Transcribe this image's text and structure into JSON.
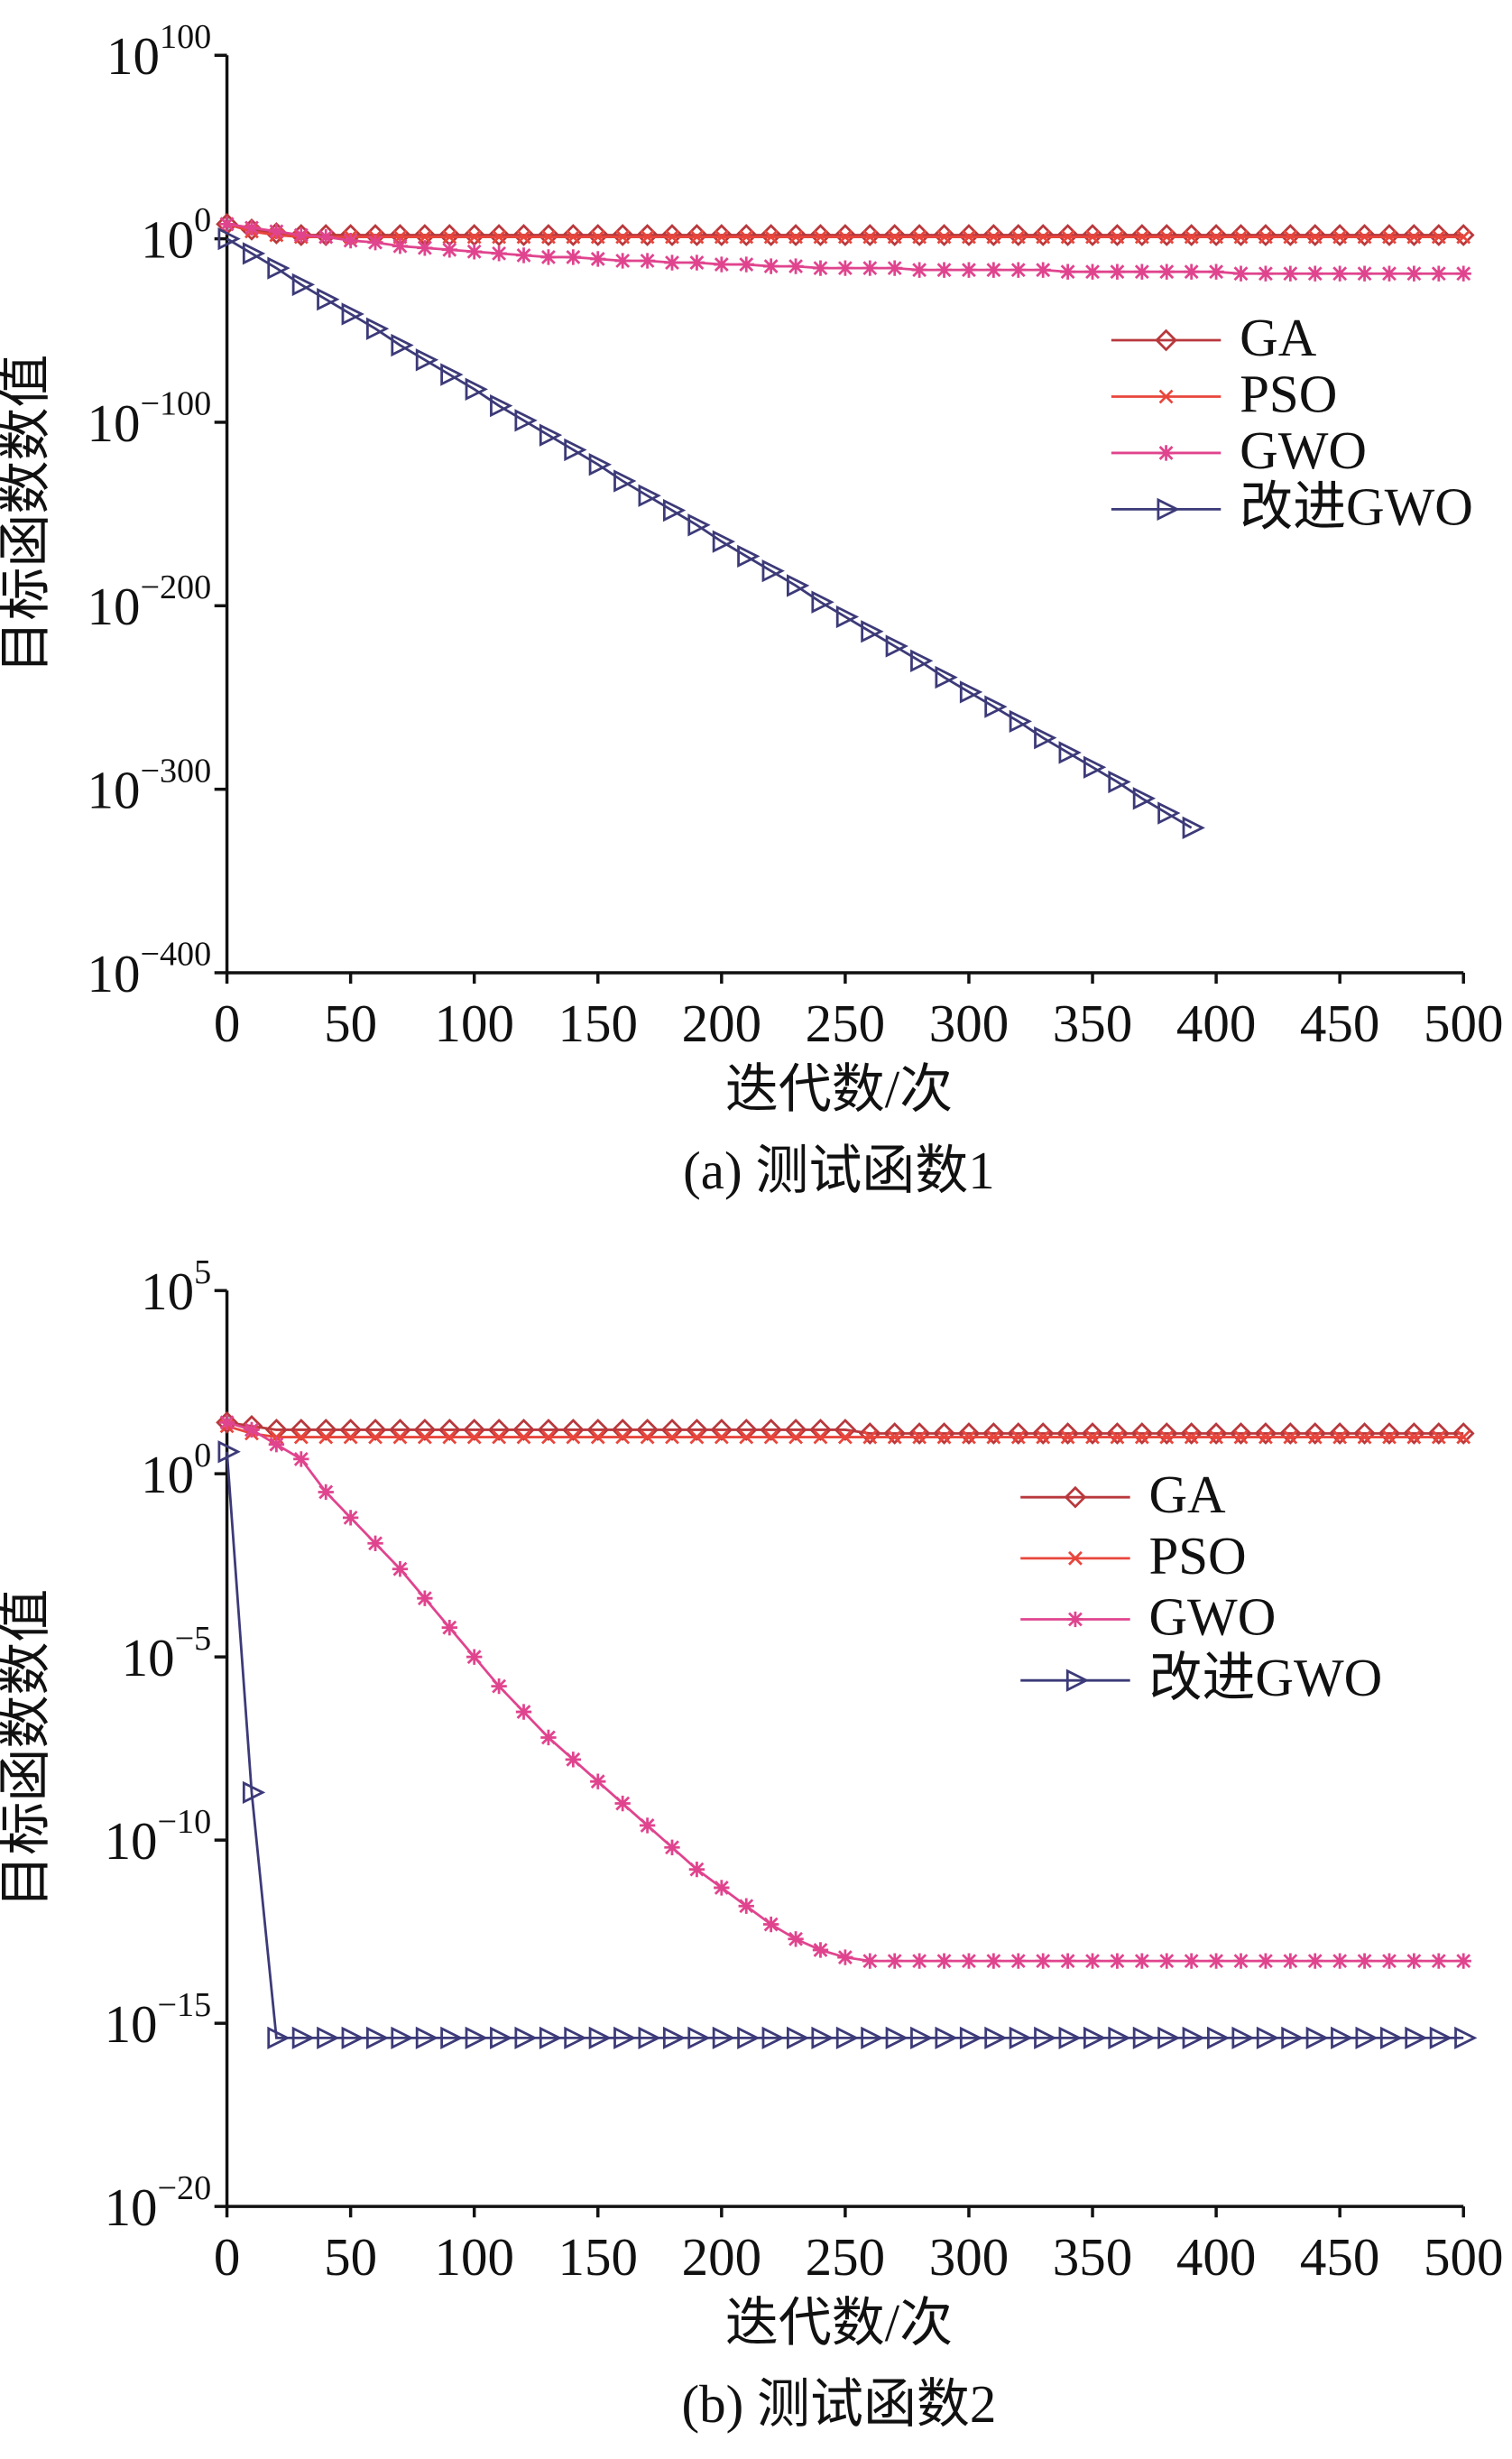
{
  "chart_data": [
    {
      "type": "line",
      "caption": "(a) 测试函数1",
      "x_label": "迭代数/次",
      "y_label": "目标函数数值",
      "log_scale": true,
      "legend": "upper right",
      "x": [
        0,
        10,
        20,
        30,
        40,
        50,
        60,
        70,
        80,
        90,
        100,
        110,
        120,
        130,
        140,
        150,
        160,
        170,
        180,
        190,
        200,
        210,
        220,
        230,
        240,
        250,
        260,
        270,
        280,
        290,
        300,
        310,
        320,
        330,
        340,
        350,
        360,
        370,
        380,
        390,
        400,
        410,
        420,
        430,
        440,
        450,
        460,
        470,
        480,
        490,
        500
      ],
      "xlim": [
        0,
        500
      ],
      "xticks": [
        0,
        50,
        100,
        150,
        200,
        250,
        300,
        350,
        400,
        450,
        500
      ],
      "ylim": [
        -400,
        100
      ],
      "yticks": [
        {
          "value": -400,
          "label": "10^−400"
        },
        {
          "value": -300,
          "label": "10^−300"
        },
        {
          "value": -200,
          "label": "10^−200"
        },
        {
          "value": -100,
          "label": "10^−100"
        },
        {
          "value": 0,
          "label": "10^0"
        },
        {
          "value": 100,
          "label": "10^100"
        }
      ],
      "series": [
        {
          "name": "GA",
          "color": "#b8383c",
          "marker": "diamond",
          "values": [
            8,
            5,
            3,
            2,
            2,
            2,
            2,
            2,
            2,
            2,
            2,
            2,
            2,
            2,
            2,
            2,
            2,
            2,
            2,
            2,
            2,
            2,
            2,
            2,
            2,
            2,
            2,
            2,
            2,
            2,
            2,
            2,
            2,
            2,
            2,
            2,
            2,
            2,
            2,
            2,
            2,
            2,
            2,
            2,
            2,
            2,
            2,
            2,
            2,
            2,
            2
          ]
        },
        {
          "name": "PSO",
          "color": "#e8463c",
          "marker": "cross",
          "values": [
            8,
            4,
            2,
            1,
            1,
            1,
            1,
            1,
            1,
            1,
            1,
            1,
            1,
            1,
            1,
            1,
            1,
            1,
            1,
            1,
            1,
            1,
            1,
            1,
            1,
            1,
            1,
            1,
            1,
            1,
            1,
            1,
            1,
            1,
            1,
            1,
            1,
            1,
            1,
            1,
            1,
            1,
            1,
            1,
            1,
            1,
            1,
            1,
            1,
            1,
            1
          ]
        },
        {
          "name": "GWO",
          "color": "#e0448e",
          "marker": "star",
          "values": [
            8,
            6,
            4,
            2,
            1,
            -1,
            -2,
            -4,
            -5,
            -6,
            -7,
            -8,
            -9,
            -10,
            -10,
            -11,
            -12,
            -12,
            -13,
            -13,
            -14,
            -14,
            -15,
            -15,
            -16,
            -16,
            -16,
            -16,
            -17,
            -17,
            -17,
            -17,
            -17,
            -17,
            -18,
            -18,
            -18,
            -18,
            -18,
            -18,
            -18,
            -19,
            -19,
            -19,
            -19,
            -19,
            -19,
            -19,
            -19,
            -19,
            -19
          ]
        },
        {
          "name": "改进GWO",
          "color": "#3c3a78",
          "marker": "triangle",
          "values": [
            0,
            -8,
            -16,
            -25,
            -33,
            -41,
            -49,
            -58,
            -66,
            -74,
            -82,
            -91,
            -99,
            -107,
            -115,
            -123,
            -132,
            -140,
            -148,
            -156,
            -165,
            -173,
            -181,
            -189,
            -198,
            -206,
            -214,
            -222,
            -230,
            -239,
            -247,
            -255,
            -263,
            -272,
            -280,
            -288,
            -296,
            -305,
            -313,
            -321,
            null,
            null,
            null,
            null,
            null,
            null,
            null,
            null,
            null,
            null,
            null
          ]
        }
      ]
    },
    {
      "type": "line",
      "caption": "(b) 测试函数2",
      "x_label": "迭代数/次",
      "y_label": "目标函数数值",
      "log_scale": true,
      "legend": "upper right",
      "x": [
        0,
        10,
        20,
        30,
        40,
        50,
        60,
        70,
        80,
        90,
        100,
        110,
        120,
        130,
        140,
        150,
        160,
        170,
        180,
        190,
        200,
        210,
        220,
        230,
        240,
        250,
        260,
        270,
        280,
        290,
        300,
        310,
        320,
        330,
        340,
        350,
        360,
        370,
        380,
        390,
        400,
        410,
        420,
        430,
        440,
        450,
        460,
        470,
        480,
        490,
        500
      ],
      "xlim": [
        0,
        500
      ],
      "xticks": [
        0,
        50,
        100,
        150,
        200,
        250,
        300,
        350,
        400,
        450,
        500
      ],
      "ylim": [
        -20,
        5
      ],
      "yticks": [
        {
          "value": -20,
          "label": "10^−20"
        },
        {
          "value": -15,
          "label": "10^−15"
        },
        {
          "value": -10,
          "label": "10^−10"
        },
        {
          "value": -5,
          "label": "10^−5"
        },
        {
          "value": 0,
          "label": "10^0"
        },
        {
          "value": 5,
          "label": "10^5"
        }
      ],
      "series": [
        {
          "name": "GA",
          "color": "#b8383c",
          "marker": "diamond",
          "values": [
            1.4,
            1.3,
            1.2,
            1.2,
            1.2,
            1.2,
            1.2,
            1.2,
            1.2,
            1.2,
            1.2,
            1.2,
            1.2,
            1.2,
            1.2,
            1.2,
            1.2,
            1.2,
            1.2,
            1.2,
            1.2,
            1.2,
            1.2,
            1.2,
            1.2,
            1.2,
            1.1,
            1.1,
            1.1,
            1.1,
            1.1,
            1.1,
            1.1,
            1.1,
            1.1,
            1.1,
            1.1,
            1.1,
            1.1,
            1.1,
            1.1,
            1.1,
            1.1,
            1.1,
            1.1,
            1.1,
            1.1,
            1.1,
            1.1,
            1.1,
            1.1
          ]
        },
        {
          "name": "PSO",
          "color": "#e8463c",
          "marker": "cross",
          "values": [
            1.3,
            1.1,
            1,
            1,
            1,
            1,
            1,
            1,
            1,
            1,
            1,
            1,
            1,
            1,
            1,
            1,
            1,
            1,
            1,
            1,
            1,
            1,
            1,
            1,
            1,
            1,
            1,
            1,
            1,
            1,
            1,
            1,
            1,
            1,
            1,
            1,
            1,
            1,
            1,
            1,
            1,
            1,
            1,
            1,
            1,
            1,
            1,
            1,
            1,
            1,
            1
          ]
        },
        {
          "name": "GWO",
          "color": "#e0448e",
          "marker": "star",
          "values": [
            1.4,
            1.2,
            0.8,
            0.4,
            -0.5,
            -1.2,
            -1.9,
            -2.6,
            -3.4,
            -4.2,
            -5,
            -5.8,
            -6.5,
            -7.2,
            -7.8,
            -8.4,
            -9,
            -9.6,
            -10.2,
            -10.8,
            -11.3,
            -11.8,
            -12.3,
            -12.7,
            -13,
            -13.2,
            -13.3,
            -13.3,
            -13.3,
            -13.3,
            -13.3,
            -13.3,
            -13.3,
            -13.3,
            -13.3,
            -13.3,
            -13.3,
            -13.3,
            -13.3,
            -13.3,
            -13.3,
            -13.3,
            -13.3,
            -13.3,
            -13.3,
            -13.3,
            -13.3,
            -13.3,
            -13.3,
            -13.3,
            -13.3
          ]
        },
        {
          "name": "改进GWO",
          "color": "#3c3a78",
          "marker": "triangle",
          "values": [
            0.6,
            -8.7,
            -15.4,
            -15.4,
            -15.4,
            -15.4,
            -15.4,
            -15.4,
            -15.4,
            -15.4,
            -15.4,
            -15.4,
            -15.4,
            -15.4,
            -15.4,
            -15.4,
            -15.4,
            -15.4,
            -15.4,
            -15.4,
            -15.4,
            -15.4,
            -15.4,
            -15.4,
            -15.4,
            -15.4,
            -15.4,
            -15.4,
            -15.4,
            -15.4,
            -15.4,
            -15.4,
            -15.4,
            -15.4,
            -15.4,
            -15.4,
            -15.4,
            -15.4,
            -15.4,
            -15.4,
            -15.4,
            -15.4,
            -15.4,
            -15.4,
            -15.4,
            -15.4,
            -15.4,
            -15.4,
            -15.4,
            -15.4,
            -15.4
          ]
        }
      ]
    }
  ]
}
